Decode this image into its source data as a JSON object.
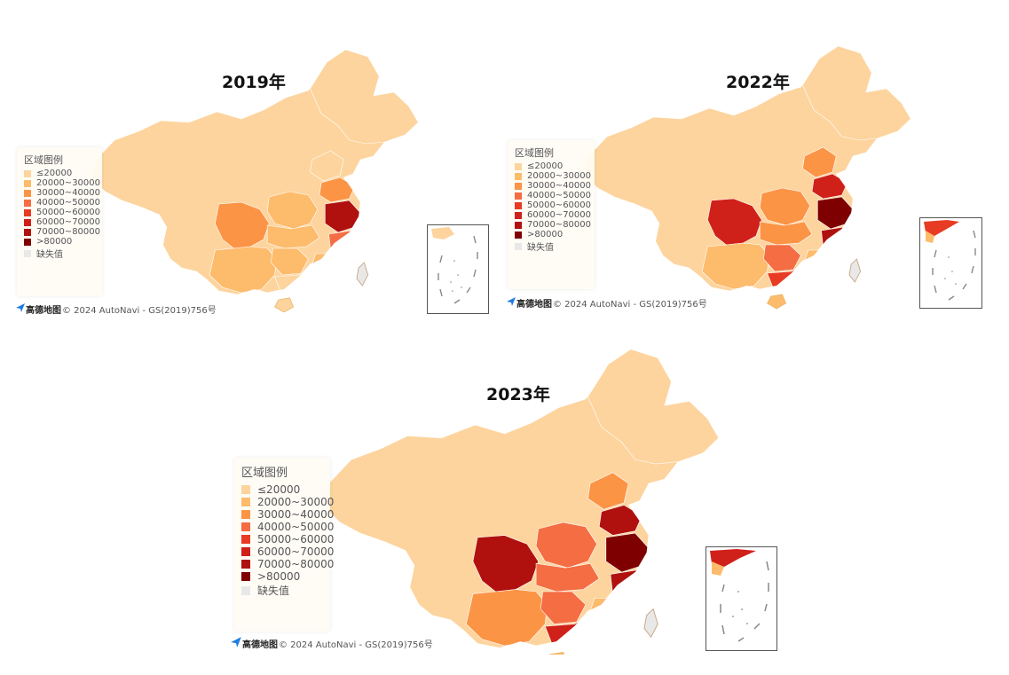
{
  "legend": {
    "title": "区域图例",
    "items": [
      {
        "label": "≤20000",
        "color": "#fdd49e"
      },
      {
        "label": "20000~30000",
        "color": "#fdbb6c"
      },
      {
        "label": "30000~40000",
        "color": "#fc9446"
      },
      {
        "label": "40000~50000",
        "color": "#f46d43"
      },
      {
        "label": "50000~60000",
        "color": "#e83b23"
      },
      {
        "label": "60000~70000",
        "color": "#d0201a"
      },
      {
        "label": "70000~80000",
        "color": "#b0110f"
      },
      {
        "label": ">80000",
        "color": "#7f0000"
      },
      {
        "label": "缺失值",
        "color": "#e8e8e8"
      }
    ]
  },
  "attribution": {
    "brand": "高德地图",
    "text": "© 2024 AutoNavi - GS(2019)756号"
  },
  "maps": [
    {
      "title": "2019年",
      "regions": {
        "northwest": "#fdd49e",
        "northeast": "#fdd49e",
        "sichuan": "#fc9446",
        "yunnan_guizhou": "#fdbb6c",
        "central": "#fdbb6c",
        "guangdong": "#fdd49e",
        "shandong": "#fc9446",
        "jiangsu": "#b0110f",
        "zhejiang": "#f46d43",
        "fujian": "#fdbb6c",
        "hubei": "#fdbb6c",
        "hunan": "#fdbb6c",
        "hebei": "#fdd49e",
        "hainan": "#fdd49e",
        "taiwan": "#e8e8e8"
      }
    },
    {
      "title": "2022年",
      "regions": {
        "northwest": "#fdd49e",
        "northeast": "#fdd49e",
        "sichuan": "#d0201a",
        "yunnan_guizhou": "#fdbb6c",
        "central": "#fc9446",
        "guangdong": "#e83b23",
        "shandong": "#d0201a",
        "jiangsu": "#7f0000",
        "zhejiang": "#b0110f",
        "fujian": "#fdbb6c",
        "hubei": "#fc9446",
        "hunan": "#f46d43",
        "hebei": "#fc9446",
        "hainan": "#fdbb6c",
        "taiwan": "#e8e8e8"
      }
    },
    {
      "title": "2023年",
      "regions": {
        "northwest": "#fdd49e",
        "northeast": "#fdd49e",
        "sichuan": "#b0110f",
        "yunnan_guizhou": "#fc9446",
        "central": "#f46d43",
        "guangdong": "#d0201a",
        "shandong": "#b0110f",
        "jiangsu": "#7f0000",
        "zhejiang": "#b0110f",
        "fujian": "#fdbb6c",
        "hubei": "#f46d43",
        "hunan": "#f46d43",
        "hebei": "#fc9446",
        "hainan": "#fdbb6c",
        "taiwan": "#e8e8e8"
      }
    }
  ]
}
